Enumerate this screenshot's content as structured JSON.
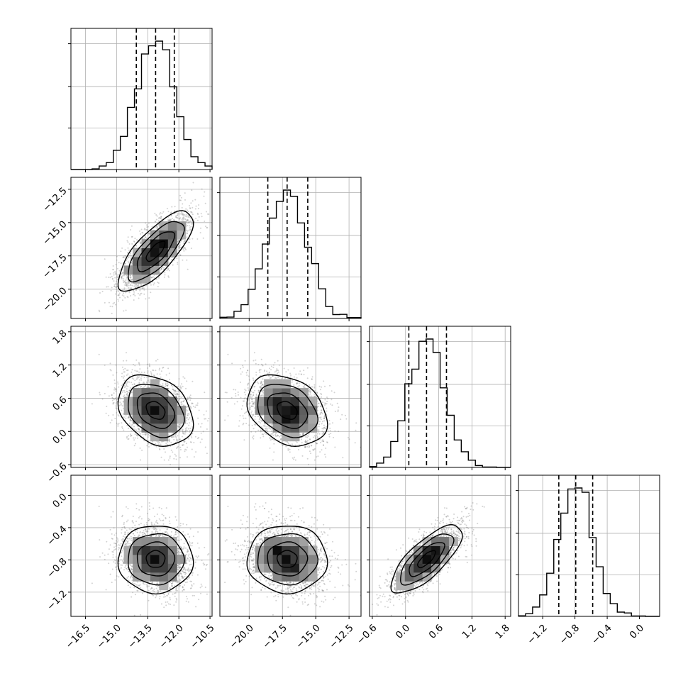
{
  "chart_data": {
    "type": "corner",
    "colors": {
      "ink": "#000000",
      "grid": "#b0b0b0",
      "points": "#7f7f7f",
      "background": "#ffffff"
    },
    "grid": true,
    "parameters": [
      {
        "range": [
          -17.2,
          -10.4
        ],
        "ticks": [
          -16.5,
          -15.0,
          -13.5,
          -12.0,
          -10.5
        ],
        "tick_labels": [
          "−16.5",
          "−15.0",
          "−13.5",
          "−12.0",
          "−10.5"
        ],
        "quantiles": [
          -14.05,
          -13.12,
          -12.22
        ],
        "mean": -13.12,
        "sd": 0.9
      },
      {
        "range": [
          -22.2,
          -11.6
        ],
        "ticks": [
          -20.0,
          -17.5,
          -15.0,
          -12.5
        ],
        "tick_labels": [
          "−20.0",
          "−17.5",
          "−15.0",
          "−12.5"
        ],
        "quantiles": [
          -18.6,
          -17.15,
          -15.6
        ],
        "mean": -17.15,
        "sd": 1.5
      },
      {
        "range": [
          -0.65,
          1.9
        ],
        "ticks": [
          -0.6,
          0.0,
          0.6,
          1.2,
          1.8
        ],
        "tick_labels": [
          "−0.6",
          "0.0",
          "0.6",
          "1.2",
          "1.8"
        ],
        "quantiles": [
          0.06,
          0.38,
          0.74
        ],
        "mean": 0.38,
        "sd": 0.32
      },
      {
        "range": [
          -1.5,
          0.25
        ],
        "ticks": [
          -1.2,
          -0.8,
          -0.4,
          0.0
        ],
        "tick_labels": [
          "−1.2",
          "−0.8",
          "−0.4",
          "0.0"
        ],
        "quantiles": [
          -1.0,
          -0.79,
          -0.58
        ],
        "mean": -0.79,
        "sd": 0.21
      }
    ],
    "correlations": [
      [
        1.0,
        0.75,
        -0.3,
        0.0
      ],
      [
        0.75,
        1.0,
        -0.3,
        0.0
      ],
      [
        -0.3,
        -0.3,
        1.0,
        0.75
      ],
      [
        0.0,
        0.0,
        0.75,
        1.0
      ]
    ],
    "histogram": {
      "bins": 20,
      "style": "step",
      "quantile_lines": "dashed"
    },
    "density_levels": [
      0.118,
      0.393,
      0.675,
      0.865
    ]
  }
}
